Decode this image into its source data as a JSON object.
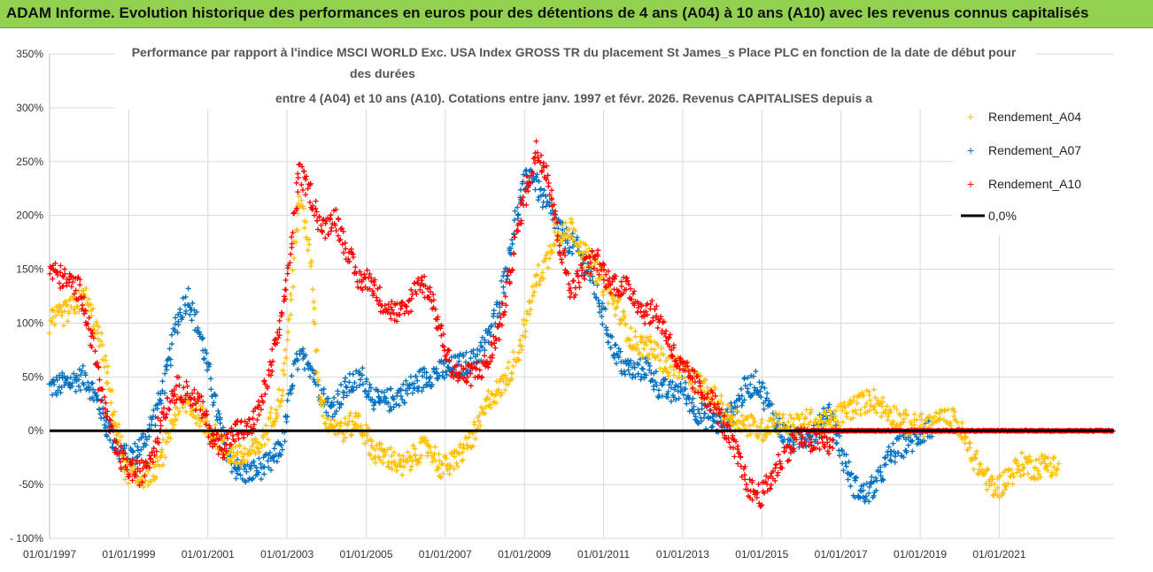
{
  "banner": {
    "title": "ADAM Informe. Evolution historique des performances en euros pour des détentions de 4 ans (A04) à 10 ans (A10) avec les revenus connus capitalisés"
  },
  "colors": {
    "banner_bg": "#92d050",
    "a04": "#ffc000",
    "a07": "#0070c0",
    "a10": "#ff0000",
    "zero": "#000000"
  },
  "chart_data": {
    "type": "scatter",
    "title": [
      "Performance par rapport à l'indice MSCI WORLD Exc. USA Index GROSS TR  du placement St James_s Place PLC en fonction de la date de début pour",
      "des durées",
      "entre 4 (A04) et 10 ans (A10). Cotations entre janv. 1997 et févr. 2026. Revenus CAPITALISES depuis a"
    ],
    "ylim": [
      -100,
      350
    ],
    "xlim": [
      1997.0,
      2023.9
    ],
    "y_ticks": [
      -100,
      -50,
      0,
      50,
      100,
      150,
      200,
      250,
      300,
      350
    ],
    "y_tick_labels": [
      "- 100%",
      "-50%",
      "0%",
      "50%",
      "100%",
      "150%",
      "200%",
      "250%",
      "300%",
      "350%"
    ],
    "x_ticks": [
      1997,
      1999,
      2001,
      2003,
      2005,
      2007,
      2009,
      2011,
      2013,
      2015,
      2017,
      2019,
      2021
    ],
    "x_tick_labels": [
      "01/01/1997",
      "01/01/1999",
      "01/01/2001",
      "01/01/2003",
      "01/01/2005",
      "01/01/2007",
      "01/01/2009",
      "01/01/2011",
      "01/01/2013",
      "01/01/2015",
      "01/01/2017",
      "01/01/2019",
      "01/01/2021"
    ],
    "legend": {
      "position": "right",
      "entries": [
        "Rendement_A04",
        "Rendement_A07",
        "Rendement_A10",
        "0,0%"
      ]
    },
    "series": [
      {
        "name": "Rendement_A04",
        "x": [
          1997.0,
          1997.5,
          1997.9,
          1998.3,
          1998.6,
          1998.9,
          1999.2,
          1999.5,
          1999.8,
          2000.2,
          2000.5,
          2000.8,
          2001.2,
          2001.5,
          2001.9,
          2002.3,
          2002.6,
          2002.9,
          2003.1,
          2003.3,
          2003.6,
          2003.8,
          2004.0,
          2004.4,
          2004.8,
          2005.2,
          2005.6,
          2005.9,
          2006.3,
          2006.6,
          2006.9,
          2007.2,
          2007.5,
          2007.8,
          2008.1,
          2008.4,
          2008.7,
          2008.9,
          2009.1,
          2009.3,
          2009.6,
          2009.8,
          2010.0,
          2010.2,
          2010.5,
          2010.8,
          2011.1,
          2011.4,
          2011.7,
          2011.9,
          2012.3,
          2012.6,
          2012.9,
          2013.2,
          2013.5,
          2013.8,
          2014.1,
          2014.4,
          2014.7,
          2015.0,
          2015.3,
          2015.6,
          2015.9,
          2016.2,
          2016.5,
          2016.8,
          2017.2,
          2017.5,
          2017.8,
          2018.1,
          2018.5,
          2018.8,
          2019.2,
          2019.6,
          2019.9,
          2020.2,
          2020.6,
          2020.9,
          2021.3,
          2021.6,
          2021.9,
          2022.2,
          2022.5
        ],
        "y": [
          100,
          112,
          125,
          80,
          20,
          -35,
          -45,
          -40,
          -30,
          20,
          25,
          15,
          -5,
          -20,
          -25,
          -15,
          10,
          40,
          120,
          220,
          160,
          40,
          10,
          0,
          10,
          -20,
          -25,
          -35,
          -20,
          -15,
          -35,
          -30,
          -15,
          0,
          30,
          40,
          60,
          80,
          110,
          140,
          160,
          190,
          180,
          190,
          165,
          150,
          130,
          110,
          85,
          80,
          75,
          60,
          60,
          50,
          40,
          30,
          15,
          10,
          5,
          0,
          10,
          5,
          5,
          10,
          5,
          10,
          20,
          25,
          30,
          20,
          10,
          5,
          5,
          10,
          10,
          -15,
          -40,
          -55,
          -40,
          -30,
          -35,
          -30,
          -35
        ]
      },
      {
        "name": "Rendement_A07",
        "x": [
          1997.0,
          1997.5,
          1997.9,
          1998.3,
          1998.6,
          1998.9,
          1999.2,
          1999.5,
          1999.8,
          2000.0,
          2000.2,
          2000.5,
          2000.8,
          2001.1,
          2001.4,
          2001.7,
          2002.0,
          2002.3,
          2002.6,
          2002.9,
          2003.2,
          2003.5,
          2003.8,
          2004.1,
          2004.5,
          2004.9,
          2005.3,
          2005.7,
          2006.1,
          2006.5,
          2006.9,
          2007.3,
          2007.7,
          2008.0,
          2008.3,
          2008.6,
          2008.8,
          2009.0,
          2009.2,
          2009.4,
          2009.7,
          2010.0,
          2010.3,
          2010.6,
          2010.9,
          2011.2,
          2011.5,
          2011.8,
          2012.1,
          2012.4,
          2012.7,
          2013.0,
          2013.3,
          2013.7,
          2014.0,
          2014.3,
          2014.6,
          2014.9,
          2015.2,
          2015.5,
          2015.8,
          2016.1,
          2016.4,
          2016.7,
          2017.0,
          2017.3,
          2017.6,
          2017.9,
          2018.2,
          2018.5,
          2018.8,
          2019.1,
          2019.3
        ],
        "y": [
          40,
          45,
          50,
          20,
          -10,
          -25,
          -20,
          0,
          30,
          60,
          100,
          125,
          90,
          40,
          -10,
          -35,
          -40,
          -35,
          -30,
          -10,
          60,
          70,
          40,
          20,
          40,
          50,
          25,
          30,
          40,
          50,
          55,
          60,
          65,
          80,
          110,
          160,
          200,
          230,
          240,
          220,
          200,
          180,
          170,
          150,
          120,
          80,
          60,
          55,
          60,
          40,
          35,
          40,
          20,
          10,
          5,
          20,
          40,
          45,
          20,
          0,
          -10,
          -5,
          0,
          20,
          -20,
          -50,
          -60,
          -50,
          -25,
          -15,
          -10,
          0,
          0
        ]
      },
      {
        "name": "Rendement_A10",
        "x": [
          1997.0,
          1997.4,
          1997.8,
          1998.1,
          1998.4,
          1998.7,
          1999.0,
          1999.3,
          1999.6,
          1999.9,
          2000.2,
          2000.5,
          2000.8,
          2001.1,
          2001.4,
          2001.7,
          2002.0,
          2002.3,
          2002.6,
          2002.9,
          2003.1,
          2003.3,
          2003.6,
          2003.9,
          2004.2,
          2004.5,
          2004.8,
          2005.1,
          2005.4,
          2005.7,
          2006.0,
          2006.3,
          2006.6,
          2006.9,
          2007.2,
          2007.5,
          2007.8,
          2008.1,
          2008.4,
          2008.7,
          2008.9,
          2009.1,
          2009.3,
          2009.6,
          2009.9,
          2010.2,
          2010.5,
          2010.8,
          2011.1,
          2011.4,
          2011.7,
          2012.0,
          2012.3,
          2012.6,
          2012.9,
          2013.2,
          2013.5,
          2013.8,
          2014.1,
          2014.4,
          2014.7,
          2015.0,
          2015.3,
          2015.6,
          2015.9,
          2016.2,
          2016.5,
          2016.8
        ],
        "y": [
          150,
          140,
          130,
          80,
          20,
          -20,
          -35,
          -40,
          -20,
          20,
          40,
          35,
          25,
          -5,
          -15,
          0,
          0,
          20,
          60,
          110,
          170,
          240,
          220,
          185,
          200,
          170,
          140,
          140,
          120,
          110,
          110,
          140,
          130,
          90,
          55,
          50,
          55,
          65,
          100,
          160,
          200,
          230,
          260,
          240,
          170,
          130,
          150,
          160,
          140,
          135,
          130,
          110,
          110,
          90,
          60,
          50,
          35,
          25,
          0,
          -25,
          -55,
          -60,
          -40,
          -20,
          -5,
          -10,
          -10,
          -15
        ]
      }
    ],
    "flat_zero_series": {
      "name": "Rendement_A10",
      "x_start": 2016.2,
      "x_end": 2023.9,
      "value": 0
    }
  }
}
